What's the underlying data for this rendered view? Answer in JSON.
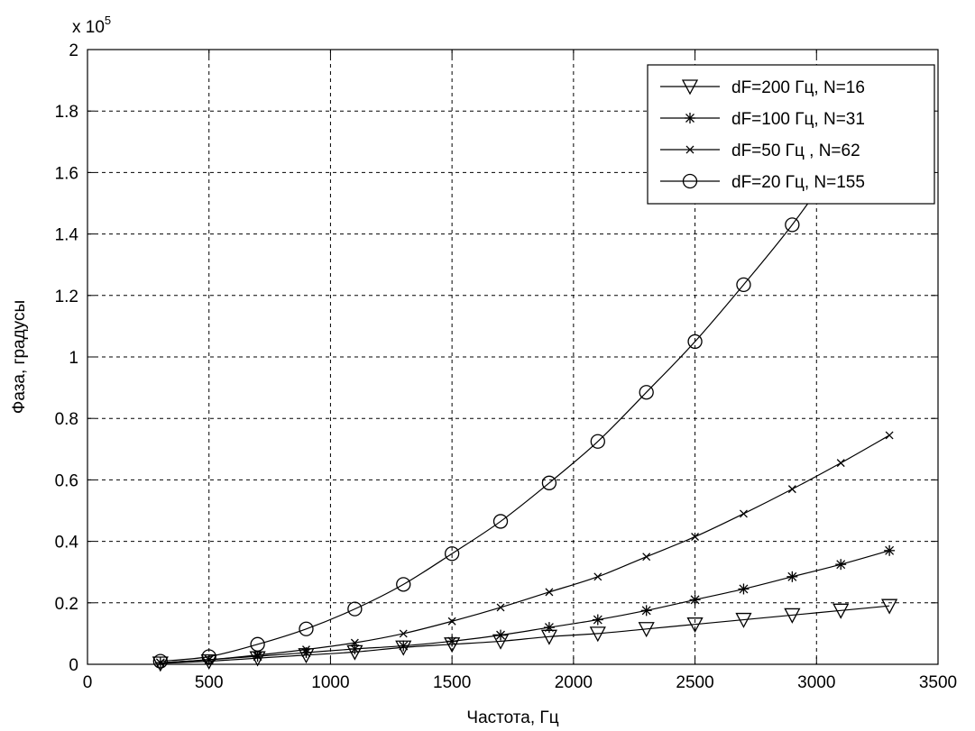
{
  "chart_data": {
    "type": "line",
    "xlabel": "Частота, Гц",
    "ylabel": "Фаза, градусы",
    "y_exponent_label": "x 10",
    "y_exponent_power": "5",
    "xlim": [
      0,
      3500
    ],
    "ylim": [
      0,
      200000
    ],
    "x_ticks": [
      0,
      500,
      1000,
      1500,
      2000,
      2500,
      3000,
      3500
    ],
    "x_tick_labels": [
      "0",
      "500",
      "1000",
      "1500",
      "2000",
      "2500",
      "3000",
      "3500"
    ],
    "y_ticks": [
      0,
      20000,
      40000,
      60000,
      80000,
      100000,
      120000,
      140000,
      160000,
      180000,
      200000
    ],
    "y_tick_labels": [
      "0",
      "0.2",
      "0.4",
      "0.6",
      "0.8",
      "1",
      "1.2",
      "1.4",
      "1.6",
      "1.8",
      "2"
    ],
    "grid": true,
    "legend_position": "top-right",
    "series": [
      {
        "name": "dF=200 Гц, N=16",
        "marker": "triangle-down",
        "x": [
          300,
          500,
          700,
          900,
          1100,
          1300,
          1500,
          1700,
          1900,
          2100,
          2300,
          2500,
          2700,
          2900,
          3100,
          3300
        ],
        "y": [
          300,
          1000,
          2000,
          3000,
          4000,
          5500,
          6500,
          7500,
          9000,
          10000,
          11500,
          13000,
          14500,
          16000,
          17500,
          19000
        ]
      },
      {
        "name": "dF=100 Гц, N=31",
        "marker": "asterisk",
        "x": [
          300,
          500,
          700,
          900,
          1100,
          1300,
          1500,
          1700,
          1900,
          2100,
          2300,
          2500,
          2700,
          2900,
          3100,
          3300
        ],
        "y": [
          500,
          1500,
          2600,
          3800,
          5000,
          6000,
          7500,
          9500,
          12000,
          14500,
          17500,
          21000,
          24500,
          28500,
          32500,
          37000
        ]
      },
      {
        "name": "dF=50 Гц , N=62",
        "marker": "cross",
        "x": [
          300,
          500,
          700,
          900,
          1100,
          1300,
          1500,
          1700,
          1900,
          2100,
          2300,
          2500,
          2700,
          2900,
          3100,
          3300
        ],
        "y": [
          500,
          1500,
          3000,
          4800,
          7000,
          10000,
          14000,
          18500,
          23500,
          28500,
          35000,
          41500,
          49000,
          57000,
          65500,
          74500
        ]
      },
      {
        "name": "dF=20 Гц, N=155",
        "marker": "circle",
        "x": [
          300,
          500,
          700,
          900,
          1100,
          1300,
          1500,
          1700,
          1900,
          2100,
          2300,
          2500,
          2700,
          2900,
          3100
        ],
        "y": [
          1000,
          2500,
          6500,
          11500,
          18000,
          26000,
          36000,
          46500,
          59000,
          72500,
          88500,
          105000,
          123500,
          143000,
          165000
        ]
      }
    ]
  }
}
